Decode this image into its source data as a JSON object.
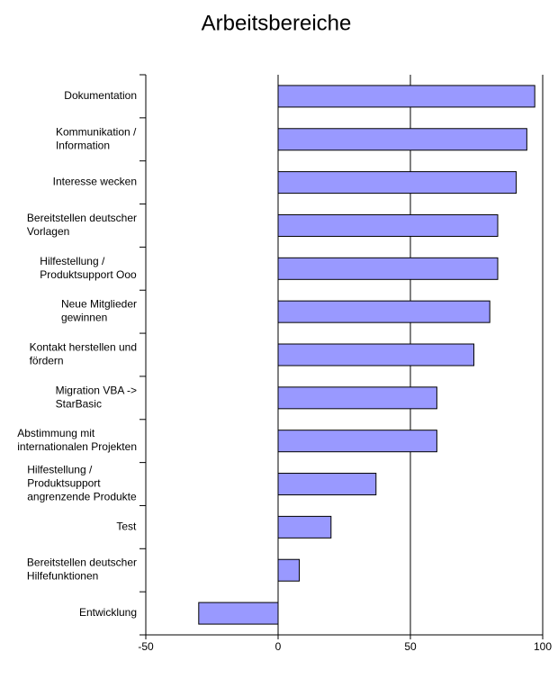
{
  "chart_data": {
    "type": "hbar",
    "title": "Arbeitsbereiche",
    "categories": [
      "Dokumentation",
      "Kommunikation /\nInformation",
      "Interesse wecken",
      "Bereitstellen deutscher\nVorlagen",
      "Hilfestellung /\nProduktsupport Ooo",
      "Neue Mitglieder\ngewinnen",
      "Kontakt herstellen und\nfördern",
      "Migration VBA ->\nStarBasic",
      "Abstimmung mit\ninternationalen Projekten",
      "Hilfestellung /\nProduktsupport\nangrenzende Produkte",
      "Test",
      "Bereitstellen deutscher\nHilfefunktionen",
      "Entwicklung"
    ],
    "values": [
      97,
      94,
      90,
      83,
      83,
      80,
      74,
      60,
      60,
      37,
      20,
      8,
      -30
    ],
    "color": "#9999ff",
    "xlim": [
      -50,
      100
    ],
    "xticks": [
      -50,
      0,
      50,
      100
    ],
    "grid": true
  }
}
